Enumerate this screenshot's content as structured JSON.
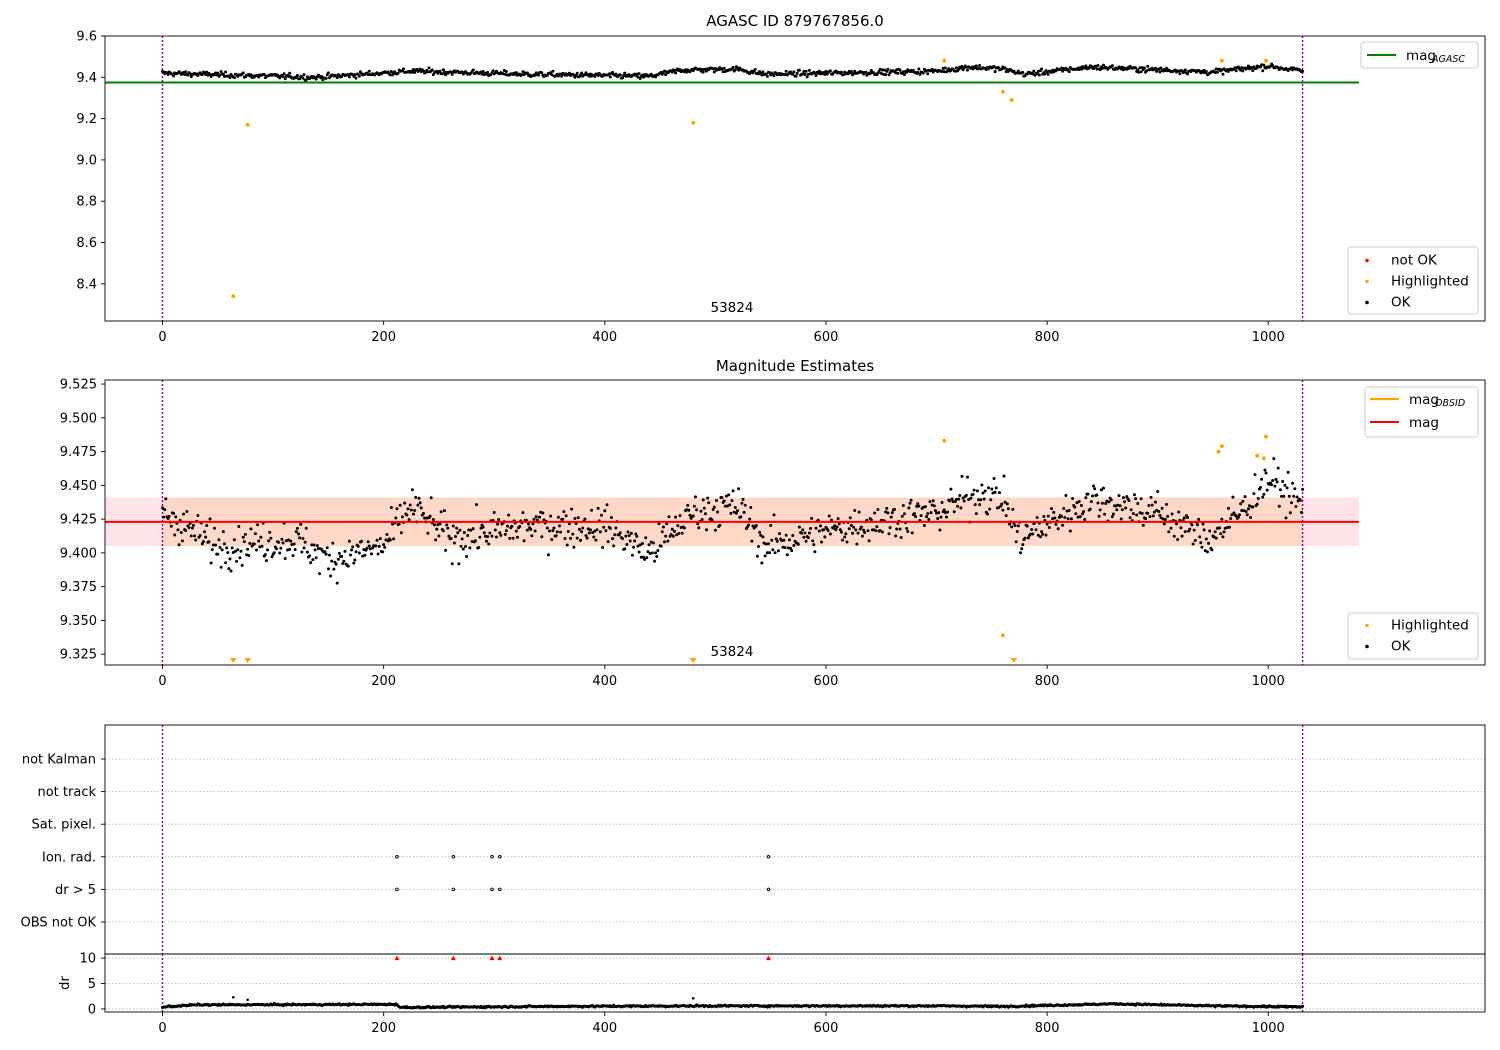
{
  "colors": {
    "ok": "#000000",
    "highlighted": "#ffa500",
    "not_ok": "#ff0000",
    "mag_agasc": "#008000",
    "mag_obsid": "#ffa500",
    "mag": "#ff0000",
    "band_inner": "#ffd8c8",
    "band_outer": "#ffe3e6",
    "vline": "#800080",
    "grid": "#b0b0b0"
  },
  "chart_data": [
    {
      "type": "scatter",
      "title": "AGASC ID 879767856.0",
      "xlim": [
        -52,
        1196
      ],
      "ylim": [
        8.22,
        9.6
      ],
      "xticks": [
        0,
        200,
        400,
        600,
        800,
        1000
      ],
      "yticks": [
        8.4,
        8.6,
        8.8,
        9.0,
        9.2,
        9.4,
        9.6
      ],
      "ytick_labels": [
        "8.4",
        "8.6",
        "8.8",
        "9.0",
        "9.2",
        "9.4",
        "9.6"
      ],
      "obsid_boundaries": [
        0,
        1031
      ],
      "obsid_label": {
        "text": "53824",
        "x": 515
      },
      "mag_agasc": {
        "value": 9.375,
        "x_range": [
          -52,
          1082
        ]
      },
      "ok_trend": {
        "n": 1032,
        "knots": [
          [
            0,
            9.42
          ],
          [
            140,
            9.4
          ],
          [
            225,
            9.43
          ],
          [
            330,
            9.415
          ],
          [
            440,
            9.405
          ],
          [
            470,
            9.435
          ],
          [
            520,
            9.44
          ],
          [
            545,
            9.415
          ],
          [
            700,
            9.43
          ],
          [
            730,
            9.45
          ],
          [
            760,
            9.44
          ],
          [
            780,
            9.415
          ],
          [
            840,
            9.45
          ],
          [
            950,
            9.425
          ],
          [
            1000,
            9.455
          ],
          [
            1031,
            9.43
          ]
        ]
      },
      "highlighted_points": [
        [
          64,
          8.34
        ],
        [
          77,
          9.17
        ],
        [
          480,
          9.18
        ],
        [
          707,
          9.48
        ],
        [
          760,
          9.33
        ],
        [
          768,
          9.29
        ],
        [
          958,
          9.48
        ],
        [
          998,
          9.48
        ]
      ],
      "legends": [
        {
          "placement": "top-right",
          "entries": [
            {
              "label": "mag",
              "subscript": "AGASC",
              "kind": "line",
              "color": "#008000"
            }
          ]
        },
        {
          "placement": "lower-right",
          "entries": [
            {
              "label": "not OK",
              "kind": "dot",
              "color": "#ff0000"
            },
            {
              "label": "Highlighted",
              "kind": "dot",
              "color": "#ffa500"
            },
            {
              "label": "OK",
              "kind": "dot",
              "color": "#000000"
            }
          ]
        }
      ]
    },
    {
      "type": "scatter",
      "title": "Magnitude Estimates",
      "xlim": [
        -52,
        1196
      ],
      "ylim": [
        9.317,
        9.528
      ],
      "xticks": [
        0,
        200,
        400,
        600,
        800,
        1000
      ],
      "yticks": [
        9.325,
        9.35,
        9.375,
        9.4,
        9.425,
        9.45,
        9.475,
        9.5,
        9.525
      ],
      "ytick_labels": [
        "9.325",
        "9.350",
        "9.375",
        "9.400",
        "9.425",
        "9.450",
        "9.475",
        "9.500",
        "9.525"
      ],
      "obsid_boundaries": [
        0,
        1031
      ],
      "obsid_label": {
        "text": "53824",
        "x": 515
      },
      "mag": {
        "value": 9.423,
        "x_range": [
          -52,
          1082
        ]
      },
      "mag_band": {
        "lo": 9.405,
        "hi": 9.441,
        "x_range": [
          -52,
          1082
        ]
      },
      "obsid_band": {
        "lo": 9.405,
        "hi": 9.441,
        "x_range": [
          0,
          1031
        ]
      },
      "ok_trend": {
        "n": 1032,
        "knots": [
          [
            0,
            9.43
          ],
          [
            50,
            9.405
          ],
          [
            120,
            9.41
          ],
          [
            150,
            9.395
          ],
          [
            200,
            9.405
          ],
          [
            225,
            9.435
          ],
          [
            260,
            9.41
          ],
          [
            330,
            9.42
          ],
          [
            400,
            9.42
          ],
          [
            440,
            9.4
          ],
          [
            480,
            9.43
          ],
          [
            520,
            9.435
          ],
          [
            545,
            9.405
          ],
          [
            620,
            9.42
          ],
          [
            700,
            9.43
          ],
          [
            740,
            9.445
          ],
          [
            760,
            9.44
          ],
          [
            775,
            9.41
          ],
          [
            840,
            9.44
          ],
          [
            900,
            9.43
          ],
          [
            945,
            9.41
          ],
          [
            975,
            9.43
          ],
          [
            1000,
            9.455
          ],
          [
            1031,
            9.435
          ]
        ]
      },
      "highlighted_points": [
        [
          707,
          9.483
        ],
        [
          760,
          9.339
        ],
        [
          955,
          9.475
        ],
        [
          958,
          9.479
        ],
        [
          990,
          9.472
        ],
        [
          996,
          9.47
        ],
        [
          998,
          9.486
        ]
      ],
      "highlighted_below_range": [
        64,
        77,
        480,
        770
      ],
      "legends": [
        {
          "placement": "top-right",
          "entries": [
            {
              "label": "mag",
              "subscript": "OBSID",
              "kind": "line",
              "color": "#ffa500"
            },
            {
              "label": "mag",
              "kind": "line",
              "color": "#ff0000"
            }
          ]
        },
        {
          "placement": "lower-right",
          "entries": [
            {
              "label": "Highlighted",
              "kind": "dot",
              "color": "#ffa500"
            },
            {
              "label": "OK",
              "kind": "dot",
              "color": "#000000"
            }
          ]
        }
      ]
    },
    {
      "type": "scatter",
      "title": "",
      "xlim": [
        -52,
        1196
      ],
      "xticks": [
        0,
        200,
        400,
        600,
        800,
        1000
      ],
      "obsid_boundaries": [
        0,
        1031
      ],
      "flags": [
        "not Kalman",
        "not track",
        "Sat. pixel.",
        "Ion. rad.",
        "dr > 5",
        "OBS not OK"
      ],
      "flag_points": {
        "Ion. rad.": [
          212,
          263,
          298,
          305,
          548
        ],
        "dr > 5": [
          212,
          263,
          298,
          305,
          548
        ]
      },
      "dr_panel": {
        "ylabel": "dr",
        "ylim": [
          -0.6,
          10.8
        ],
        "yticks": [
          0,
          5,
          10
        ],
        "ytick_labels": [
          "0",
          "5",
          "10"
        ],
        "clipped_points": [
          212,
          263,
          298,
          305,
          548
        ],
        "outliers": [
          [
            64,
            2.3
          ],
          [
            77,
            1.8
          ],
          [
            480,
            2.1
          ]
        ],
        "ok_trend": {
          "n": 1032,
          "knots": [
            [
              0,
              0.4
            ],
            [
              30,
              0.8
            ],
            [
              212,
              0.9
            ],
            [
              215,
              0.3
            ],
            [
              350,
              0.5
            ],
            [
              500,
              0.6
            ],
            [
              700,
              0.6
            ],
            [
              760,
              0.5
            ],
            [
              860,
              1.0
            ],
            [
              950,
              0.6
            ],
            [
              1031,
              0.4
            ]
          ]
        }
      }
    }
  ]
}
